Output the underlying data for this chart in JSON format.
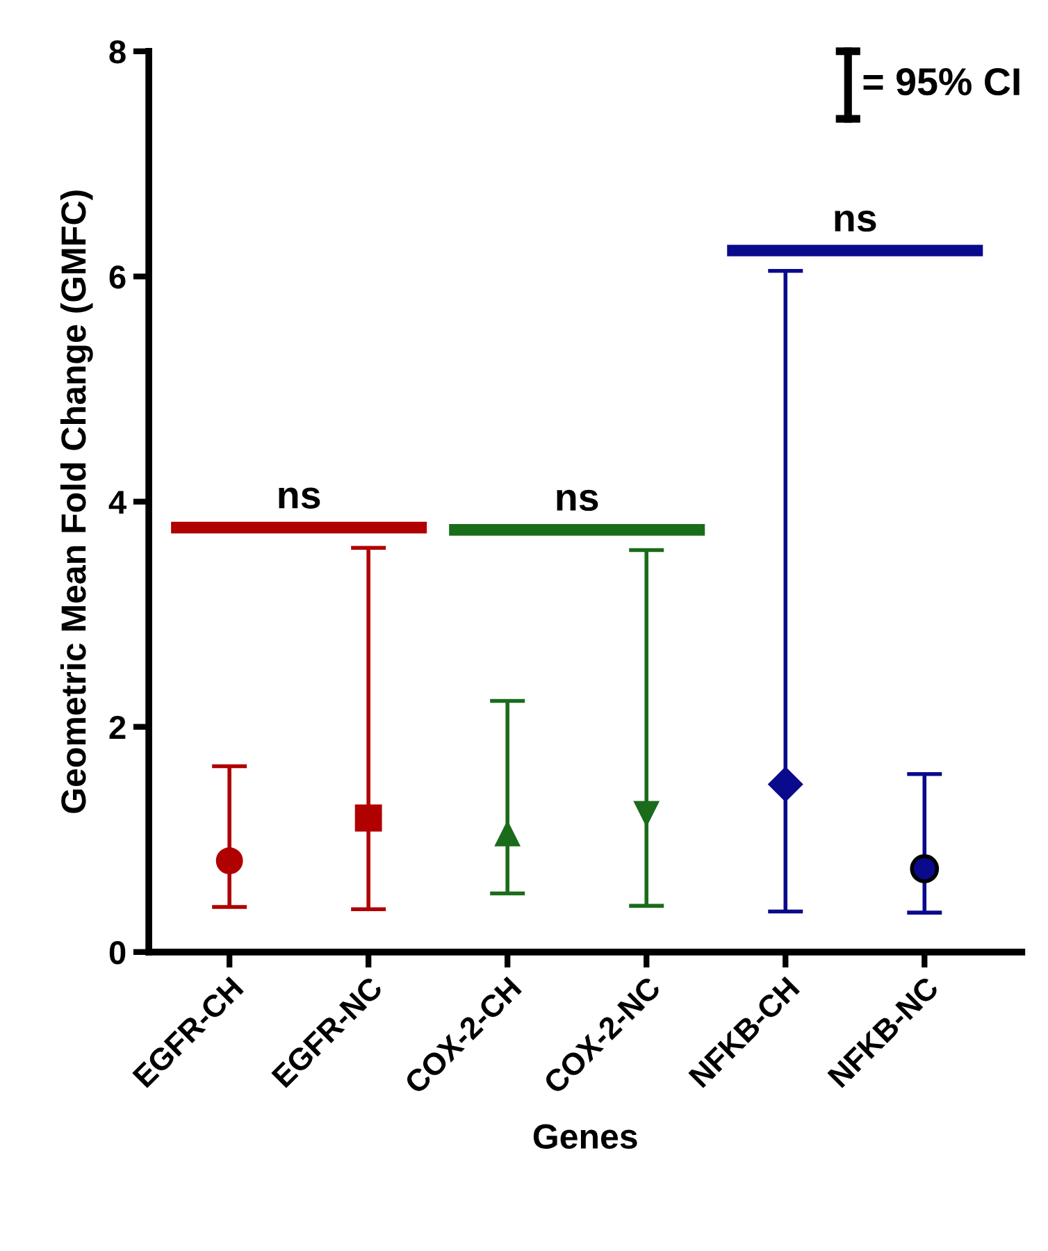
{
  "chart_data": {
    "type": "scatter",
    "xlabel": "Genes",
    "ylabel": "Geometric Mean Fold Change (GMFC)",
    "categories": [
      "EGFR-CH",
      "EGFR-NC",
      "COX-2-CH",
      "COX-2-NC",
      "NFKB-CH",
      "NFKB-NC"
    ],
    "series": [
      {
        "color": "#b00000",
        "marker": "circle",
        "values": [
          0.81,
          null,
          null,
          null,
          null,
          null
        ],
        "errors": [
          [
            0.4,
            1.65
          ],
          null,
          null,
          null,
          null,
          null
        ]
      },
      {
        "color": "#b00000",
        "marker": "square",
        "values": [
          null,
          1.19,
          null,
          null,
          null,
          null
        ],
        "errors": [
          null,
          [
            0.38,
            3.59
          ],
          null,
          null,
          null,
          null
        ]
      },
      {
        "color": "#1a6b1a",
        "marker": "triangle",
        "values": [
          null,
          null,
          1.05,
          null,
          null,
          null
        ],
        "errors": [
          null,
          null,
          [
            0.52,
            2.23
          ],
          null,
          null,
          null
        ]
      },
      {
        "color": "#1a6b1a",
        "marker": "triangle_down",
        "values": [
          null,
          null,
          null,
          1.23,
          null,
          null
        ],
        "errors": [
          null,
          null,
          null,
          [
            0.41,
            3.57
          ],
          null,
          null
        ]
      },
      {
        "color": "#0a0a8c",
        "marker": "diamond",
        "values": [
          null,
          null,
          null,
          null,
          1.49,
          null
        ],
        "errors": [
          null,
          null,
          null,
          null,
          [
            0.36,
            6.05
          ],
          null
        ]
      },
      {
        "color": "#0a0a8c",
        "marker": "circle",
        "values": [
          null,
          null,
          null,
          null,
          null,
          0.74
        ],
        "errors": [
          null,
          null,
          null,
          null,
          null,
          [
            0.35,
            1.58
          ]
        ]
      }
    ],
    "ylim": [
      0,
      8
    ],
    "yticks": [
      0,
      2,
      4,
      6,
      8
    ],
    "grid": false,
    "legend": false,
    "annotations": [
      "ns",
      "ns",
      "ns",
      "= 95% CI"
    ]
  }
}
